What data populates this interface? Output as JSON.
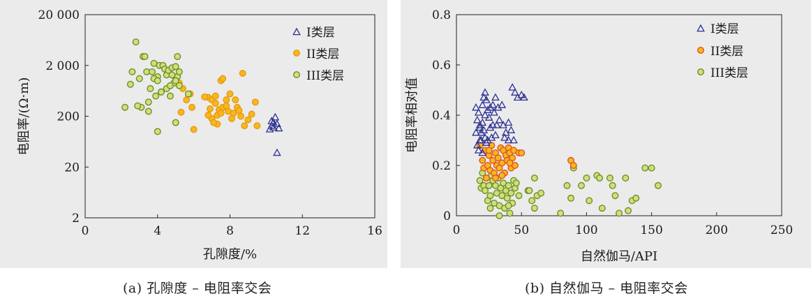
{
  "colors": {
    "panel_bg": "#ebebeb",
    "class1": "#2e3192",
    "class2_fill": "#f7b81b",
    "class2_stroke": "#e69a13",
    "class2b_stroke": "#e0532a",
    "class3_fill": "#cfe07a",
    "class3_stroke": "#6f8f2a"
  },
  "chart_data": [
    {
      "type": "scatter",
      "title": "",
      "caption": "(a) 孔隙度 – 电阻率交会",
      "xlabel": "孔隙度/%",
      "ylabel": "电阻率/(Ω·m)",
      "xlim": [
        0,
        16
      ],
      "ylim_log": [
        2,
        20000
      ],
      "yscale": "log",
      "xticks": [
        0,
        4,
        8,
        12,
        16
      ],
      "xtick_labels": [
        "0",
        "4",
        "8",
        "12",
        "16"
      ],
      "yticks": [
        2,
        20,
        200,
        2000,
        20000
      ],
      "ytick_labels": [
        "2",
        "20",
        "200",
        "2 000",
        "20 000"
      ],
      "legend": [
        "I类层",
        "II类层",
        "III类层"
      ],
      "series": [
        {
          "name": "I类层",
          "points": [
            [
              10.2,
              110
            ],
            [
              10.3,
              130
            ],
            [
              10.4,
              150
            ],
            [
              10.5,
              190
            ],
            [
              10.4,
              120
            ],
            [
              10.6,
              140
            ],
            [
              10.7,
              115
            ],
            [
              10.6,
              38
            ],
            [
              10.3,
              160
            ]
          ]
        },
        {
          "name": "II类层",
          "points": [
            [
              5.0,
              1100
            ],
            [
              5.2,
              900
            ],
            [
              5.4,
              700
            ],
            [
              5.8,
              550
            ],
            [
              5.6,
              420
            ],
            [
              5.9,
              300
            ],
            [
              5.3,
              240
            ],
            [
              6.0,
              110
            ],
            [
              6.8,
              470
            ],
            [
              7.0,
              420
            ],
            [
              7.2,
              360
            ],
            [
              6.9,
              280
            ],
            [
              7.4,
              270
            ],
            [
              7.6,
              300
            ],
            [
              7.8,
              420
            ],
            [
              7.3,
              210
            ],
            [
              7.0,
              180
            ],
            [
              7.5,
              230
            ],
            [
              7.9,
              250
            ],
            [
              8.2,
              230
            ],
            [
              8.0,
              550
            ],
            [
              8.3,
              420
            ],
            [
              8.4,
              300
            ],
            [
              8.1,
              180
            ],
            [
              8.6,
              200
            ],
            [
              8.8,
              130
            ],
            [
              9.0,
              170
            ],
            [
              9.2,
              220
            ],
            [
              9.4,
              380
            ],
            [
              9.5,
              130
            ],
            [
              8.7,
              1400
            ],
            [
              7.5,
              1000
            ],
            [
              7.3,
              140
            ],
            [
              6.8,
              210
            ],
            [
              7.1,
              150
            ],
            [
              7.8,
              320
            ],
            [
              7.2,
              500
            ],
            [
              8.5,
              260
            ],
            [
              7.6,
              1100
            ],
            [
              6.6,
              480
            ]
          ]
        },
        {
          "name": "III类层",
          "points": [
            [
              2.2,
              300
            ],
            [
              2.5,
              850
            ],
            [
              2.6,
              1500
            ],
            [
              2.8,
              5800
            ],
            [
              3.0,
              1100
            ],
            [
              3.1,
              300
            ],
            [
              3.2,
              3000
            ],
            [
              3.4,
              1500
            ],
            [
              3.5,
              380
            ],
            [
              3.6,
              700
            ],
            [
              3.7,
              1500
            ],
            [
              3.8,
              2200
            ],
            [
              3.9,
              500
            ],
            [
              4.0,
              1200
            ],
            [
              4.1,
              2000
            ],
            [
              4.2,
              600
            ],
            [
              4.3,
              2000
            ],
            [
              4.4,
              1700
            ],
            [
              4.5,
              1300
            ],
            [
              4.6,
              1600
            ],
            [
              4.7,
              500
            ],
            [
              4.8,
              1800
            ],
            [
              4.9,
              900
            ],
            [
              5.0,
              1900
            ],
            [
              5.1,
              1200
            ],
            [
              5.2,
              800
            ],
            [
              5.0,
              150
            ],
            [
              4.0,
              100
            ],
            [
              3.5,
              250
            ],
            [
              4.5,
              700
            ],
            [
              4.8,
              1300
            ],
            [
              5.1,
              3000
            ],
            [
              5.7,
              550
            ],
            [
              5.0,
              1000
            ],
            [
              4.2,
              600
            ],
            [
              3.8,
              1100
            ],
            [
              3.3,
              3000
            ],
            [
              4.7,
              800
            ],
            [
              2.9,
              320
            ],
            [
              4.0,
              1000
            ],
            [
              5.2,
              1500
            ]
          ]
        }
      ]
    },
    {
      "type": "scatter",
      "title": "",
      "caption": "(b) 自然伽马 – 电阻率交会",
      "xlabel": "自然伽马/API",
      "ylabel": "电阻率相对值",
      "xlim": [
        0,
        250
      ],
      "ylim": [
        0,
        0.8
      ],
      "xticks": [
        0,
        50,
        100,
        150,
        200,
        250
      ],
      "yticks": [
        0,
        0.2,
        0.4,
        0.6,
        0.8
      ],
      "ytick_labels": [
        "0",
        "0.2",
        "0.4",
        "0.6",
        "0.8"
      ],
      "legend": [
        "I类层",
        "II类层",
        "III类层"
      ],
      "series": [
        {
          "name": "I类层",
          "points": [
            [
              15,
              0.43
            ],
            [
              16,
              0.38
            ],
            [
              17,
              0.41
            ],
            [
              18,
              0.35
            ],
            [
              18,
              0.3
            ],
            [
              19,
              0.33
            ],
            [
              20,
              0.44
            ],
            [
              20,
              0.37
            ],
            [
              21,
              0.47
            ],
            [
              22,
              0.49
            ],
            [
              22,
              0.31
            ],
            [
              23,
              0.46
            ],
            [
              24,
              0.42
            ],
            [
              25,
              0.39
            ],
            [
              26,
              0.35
            ],
            [
              27,
              0.31
            ],
            [
              28,
              0.44
            ],
            [
              29,
              0.41
            ],
            [
              30,
              0.47
            ],
            [
              31,
              0.36
            ],
            [
              32,
              0.43
            ],
            [
              33,
              0.38
            ],
            [
              35,
              0.44
            ],
            [
              36,
              0.36
            ],
            [
              38,
              0.33
            ],
            [
              40,
              0.37
            ],
            [
              42,
              0.34
            ],
            [
              43,
              0.51
            ],
            [
              45,
              0.49
            ],
            [
              47,
              0.47
            ],
            [
              50,
              0.48
            ],
            [
              52,
              0.47
            ],
            [
              15,
              0.33
            ],
            [
              16,
              0.28
            ],
            [
              17,
              0.26
            ],
            [
              18,
              0.36
            ],
            [
              19,
              0.3
            ],
            [
              20,
              0.25
            ],
            [
              21,
              0.34
            ],
            [
              24,
              0.3
            ],
            [
              26,
              0.43
            ],
            [
              40,
              0.3
            ],
            [
              44,
              0.3
            ],
            [
              37,
              0.31
            ],
            [
              23,
              0.29
            ],
            [
              28,
              0.36
            ],
            [
              30,
              0.32
            ],
            [
              22,
              0.4
            ]
          ]
        },
        {
          "name": "II类层",
          "points": [
            [
              18,
              0.28
            ],
            [
              20,
              0.22
            ],
            [
              21,
              0.19
            ],
            [
              22,
              0.26
            ],
            [
              23,
              0.15
            ],
            [
              24,
              0.2
            ],
            [
              25,
              0.24
            ],
            [
              26,
              0.18
            ],
            [
              27,
              0.28
            ],
            [
              28,
              0.22
            ],
            [
              29,
              0.17
            ],
            [
              30,
              0.25
            ],
            [
              31,
              0.2
            ],
            [
              32,
              0.23
            ],
            [
              33,
              0.19
            ],
            [
              34,
              0.27
            ],
            [
              35,
              0.21
            ],
            [
              36,
              0.26
            ],
            [
              37,
              0.17
            ],
            [
              38,
              0.24
            ],
            [
              39,
              0.22
            ],
            [
              40,
              0.27
            ],
            [
              41,
              0.25
            ],
            [
              42,
              0.19
            ],
            [
              43,
              0.23
            ],
            [
              44,
              0.26
            ],
            [
              45,
              0.2
            ],
            [
              48,
              0.25
            ],
            [
              50,
              0.25
            ],
            [
              88,
              0.22
            ],
            [
              90,
              0.2
            ],
            [
              35,
              0.16
            ],
            [
              30,
              0.15
            ],
            [
              25,
              0.26
            ],
            [
              41,
              0.21
            ]
          ]
        },
        {
          "name": "III类层",
          "points": [
            [
              18,
              0.14
            ],
            [
              19,
              0.11
            ],
            [
              20,
              0.17
            ],
            [
              21,
              0.12
            ],
            [
              22,
              0.1
            ],
            [
              23,
              0.15
            ],
            [
              24,
              0.06
            ],
            [
              25,
              0.12
            ],
            [
              26,
              0.08
            ],
            [
              27,
              0.16
            ],
            [
              28,
              0.14
            ],
            [
              29,
              0.05
            ],
            [
              30,
              0.12
            ],
            [
              31,
              0.09
            ],
            [
              32,
              0.15
            ],
            [
              33,
              0.04
            ],
            [
              34,
              0.11
            ],
            [
              35,
              0.08
            ],
            [
              36,
              0.13
            ],
            [
              37,
              0.03
            ],
            [
              38,
              0.1
            ],
            [
              39,
              0.07
            ],
            [
              40,
              0.12
            ],
            [
              41,
              0.01
            ],
            [
              42,
              0.09
            ],
            [
              43,
              0.05
            ],
            [
              44,
              0.14
            ],
            [
              45,
              0.11
            ],
            [
              46,
              0.13
            ],
            [
              48,
              0.08
            ],
            [
              55,
              0.1
            ],
            [
              58,
              0.06
            ],
            [
              60,
              0.15
            ],
            [
              62,
              0.08
            ],
            [
              65,
              0.09
            ],
            [
              80,
              0.01
            ],
            [
              85,
              0.12
            ],
            [
              88,
              0.07
            ],
            [
              90,
              0.19
            ],
            [
              96,
              0.12
            ],
            [
              100,
              0.15
            ],
            [
              102,
              0.06
            ],
            [
              108,
              0.16
            ],
            [
              110,
              0.15
            ],
            [
              112,
              0.03
            ],
            [
              118,
              0.15
            ],
            [
              120,
              0.12
            ],
            [
              122,
              0.08
            ],
            [
              130,
              0.15
            ],
            [
              132,
              0.02
            ],
            [
              135,
              0.06
            ],
            [
              138,
              0.07
            ],
            [
              145,
              0.19
            ],
            [
              150,
              0.19
            ],
            [
              155,
              0.12
            ],
            [
              56,
              0.1
            ],
            [
              26,
              0.03
            ],
            [
              33,
              0.0
            ],
            [
              40,
              0.04
            ],
            [
              125,
              0.01
            ],
            [
              60,
              0.03
            ]
          ]
        }
      ]
    }
  ]
}
